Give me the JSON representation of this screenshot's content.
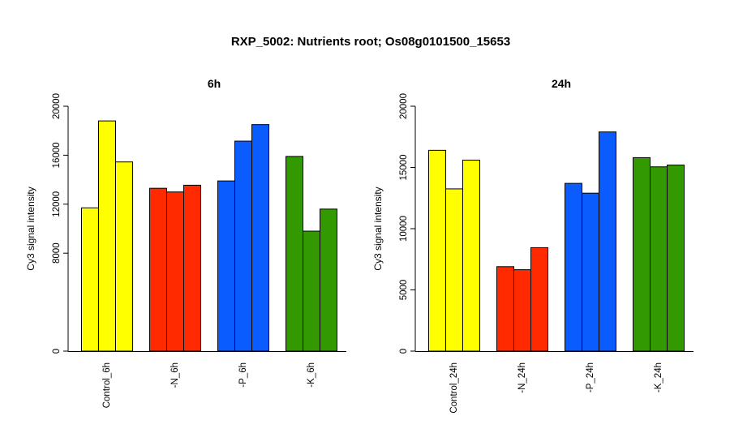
{
  "figure_title": "RXP_5002: Nutrients root; Os08g0101500_15653",
  "chart_data": [
    {
      "type": "bar",
      "title": "6h",
      "ylabel": "Cy3 signal intensity",
      "xlabel": "",
      "ylim": [
        0,
        20000
      ],
      "yticks": [
        0,
        8000,
        12000,
        16000,
        20000
      ],
      "ytick_labels": [
        "0",
        "8000",
        "12000",
        "16000",
        "20000"
      ],
      "categories": [
        "Control_6h",
        "-N_6h",
        "-P_6h",
        "-K_6h"
      ],
      "group_colors": [
        "#ffff00",
        "#ff2a00",
        "#0a5cff",
        "#339900"
      ],
      "values": [
        [
          11700,
          18800,
          15450
        ],
        [
          13300,
          13000,
          13550
        ],
        [
          13900,
          17150,
          18500
        ],
        [
          15900,
          9800,
          11600
        ]
      ],
      "grid": false,
      "legend": "none"
    },
    {
      "type": "bar",
      "title": "24h",
      "ylabel": "Cy3 signal intensity",
      "xlabel": "",
      "ylim": [
        0,
        20000
      ],
      "yticks": [
        0,
        5000,
        10000,
        15000,
        20000
      ],
      "ytick_labels": [
        "0",
        "5000",
        "10000",
        "15000",
        "20000"
      ],
      "categories": [
        "Control_24h",
        "-N_24h",
        "-P_24h",
        "-K_24h"
      ],
      "group_colors": [
        "#ffff00",
        "#ff2a00",
        "#0a5cff",
        "#339900"
      ],
      "values": [
        [
          16400,
          13250,
          15600
        ],
        [
          6900,
          6650,
          8450
        ],
        [
          13700,
          12900,
          17900
        ],
        [
          15800,
          15050,
          15200
        ]
      ],
      "grid": false,
      "legend": "none"
    }
  ]
}
